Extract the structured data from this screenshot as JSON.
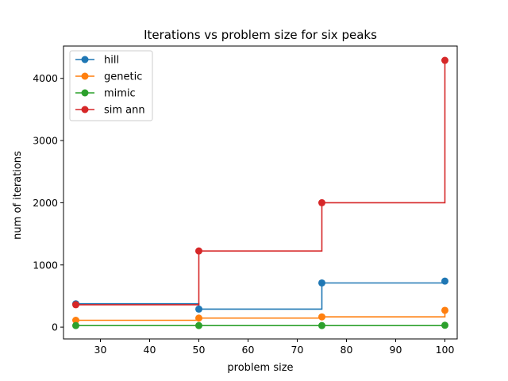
{
  "chart_data": {
    "type": "line",
    "step": "post",
    "title": "Iterations vs problem size for six peaks",
    "xlabel": "problem size",
    "ylabel": "num of iterations",
    "xlim": [
      22.5,
      102.5
    ],
    "ylim": [
      -190,
      4520
    ],
    "xticks": [
      30,
      40,
      50,
      60,
      70,
      80,
      90,
      100
    ],
    "yticks": [
      0,
      1000,
      2000,
      3000,
      4000
    ],
    "x": [
      25,
      50,
      75,
      100
    ],
    "legend_position": "top-left",
    "grid": false,
    "series": [
      {
        "name": "hill",
        "color": "#1f77b4",
        "values": [
          375,
          290,
          710,
          740
        ]
      },
      {
        "name": "genetic",
        "color": "#ff7f0e",
        "values": [
          110,
          145,
          165,
          270
        ]
      },
      {
        "name": "mimic",
        "color": "#2ca02c",
        "values": [
          25,
          25,
          25,
          30
        ]
      },
      {
        "name": "sim ann",
        "color": "#d62728",
        "values": [
          360,
          1225,
          2000,
          4290
        ]
      }
    ]
  }
}
